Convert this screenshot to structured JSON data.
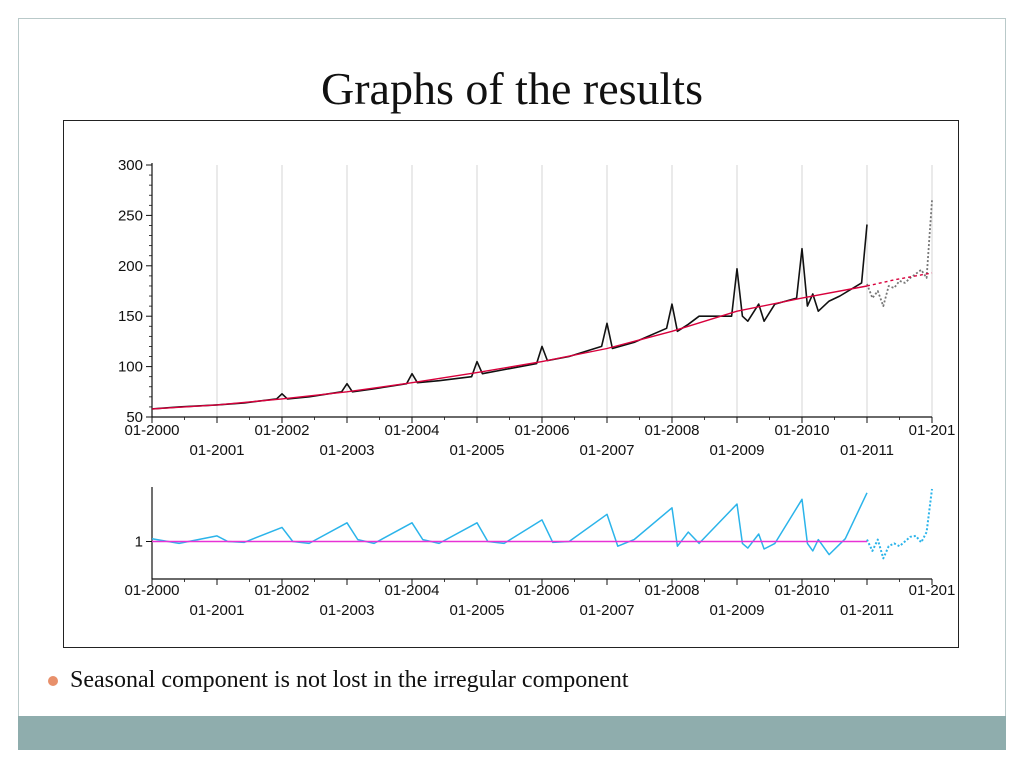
{
  "slide": {
    "title": "Graphs of the results",
    "bullet": "Seasonal component is not lost in the irregular component"
  },
  "colors": {
    "series_original": "#111111",
    "series_trend": "#d8003c",
    "series_seasonal_irregular": "#2bb4ea",
    "reference_line": "#e832d6",
    "bullet": "#e8906b",
    "footer": "#8fadad"
  },
  "chart_data": [
    {
      "type": "line",
      "title": "",
      "xlabel": "",
      "ylabel": "",
      "ylim": [
        50,
        300
      ],
      "xlim": [
        "2000-01",
        "2012-01"
      ],
      "y_ticks": [
        "300",
        "250",
        "200",
        "150",
        "100",
        "50"
      ],
      "y_tick_values": [
        300,
        250,
        200,
        150,
        100,
        50
      ],
      "x_ticks_top_row": [
        "01-2000",
        "01-2002",
        "01-2004",
        "01-2006",
        "01-2008",
        "01-2010",
        "01-201"
      ],
      "x_ticks_bottom_row": [
        "01-2001",
        "01-2003",
        "01-2005",
        "01-2007",
        "01-2009",
        "01-2011"
      ],
      "grid": true,
      "series": [
        {
          "style": "solid",
          "x": [
            "2000-01",
            "2000-06",
            "2001-01",
            "2001-06",
            "2001-12",
            "2002-01",
            "2002-02",
            "2002-06",
            "2002-12",
            "2003-01",
            "2003-02",
            "2003-06",
            "2003-12",
            "2004-01",
            "2004-02",
            "2004-06",
            "2004-12",
            "2005-01",
            "2005-02",
            "2005-06",
            "2005-12",
            "2006-01",
            "2006-02",
            "2006-06",
            "2006-12",
            "2007-01",
            "2007-02",
            "2007-06",
            "2007-12",
            "2008-01",
            "2008-02",
            "2008-04",
            "2008-06",
            "2008-12",
            "2009-01",
            "2009-02",
            "2009-03",
            "2009-05",
            "2009-06",
            "2009-08",
            "2009-12",
            "2010-01",
            "2010-02",
            "2010-03",
            "2010-04",
            "2010-06",
            "2010-08",
            "2010-12",
            "2011-01"
          ],
          "values": [
            58,
            60,
            62,
            64,
            68,
            73,
            68,
            70,
            75,
            83,
            75,
            78,
            83,
            93,
            84,
            86,
            90,
            105,
            93,
            97,
            103,
            120,
            106,
            110,
            120,
            143,
            118,
            124,
            138,
            162,
            135,
            142,
            150,
            150,
            197,
            150,
            145,
            162,
            145,
            162,
            168,
            217,
            160,
            172,
            155,
            165,
            170,
            183,
            241
          ]
        },
        {
          "style": "dotted",
          "x": [
            "2011-01",
            "2011-02",
            "2011-03",
            "2011-04",
            "2011-05",
            "2011-06",
            "2011-07",
            "2011-08",
            "2011-09",
            "2011-10",
            "2011-11",
            "2011-12",
            "2012-01"
          ],
          "values": [
            182,
            168,
            175,
            160,
            180,
            178,
            185,
            183,
            188,
            192,
            196,
            188,
            265
          ]
        },
        {
          "style": "trend-solid",
          "x": [
            "2000-01",
            "2001-01",
            "2002-01",
            "2003-01",
            "2004-01",
            "2005-01",
            "2006-01",
            "2007-01",
            "2008-01",
            "2009-01",
            "2010-01",
            "2011-01"
          ],
          "values": [
            58,
            62,
            68,
            75,
            84,
            94,
            105,
            118,
            135,
            155,
            168,
            180
          ]
        },
        {
          "style": "trend-dashed",
          "x": [
            "2011-01",
            "2011-06",
            "2012-01"
          ],
          "values": [
            180,
            186,
            193
          ]
        }
      ]
    },
    {
      "type": "line",
      "title": "",
      "xlabel": "",
      "ylabel": "",
      "ylim": [
        0.6,
        1.56
      ],
      "xlim": [
        "2000-01",
        "2012-01"
      ],
      "y_ticks": [
        "1"
      ],
      "y_tick_values": [
        1
      ],
      "x_ticks_top_row": [
        "01-2000",
        "01-2002",
        "01-2004",
        "01-2006",
        "01-2008",
        "01-2010",
        "01-201"
      ],
      "x_ticks_bottom_row": [
        "01-2001",
        "01-2003",
        "01-2005",
        "01-2007",
        "01-2009",
        "01-2011"
      ],
      "grid": false,
      "series": [
        {
          "style": "solid",
          "x": [
            "2000-01",
            "2000-06",
            "2001-01",
            "2001-03",
            "2001-06",
            "2002-01",
            "2002-03",
            "2002-06",
            "2003-01",
            "2003-03",
            "2003-06",
            "2004-01",
            "2004-03",
            "2004-06",
            "2005-01",
            "2005-03",
            "2005-06",
            "2006-01",
            "2006-03",
            "2006-06",
            "2007-01",
            "2007-03",
            "2007-06",
            "2008-01",
            "2008-02",
            "2008-04",
            "2008-06",
            "2009-01",
            "2009-02",
            "2009-03",
            "2009-05",
            "2009-06",
            "2009-08",
            "2010-01",
            "2010-02",
            "2010-03",
            "2010-04",
            "2010-06",
            "2010-09",
            "2011-01"
          ],
          "values": [
            1.03,
            0.98,
            1.06,
            1.0,
            0.99,
            1.15,
            1.0,
            0.98,
            1.2,
            1.02,
            0.98,
            1.2,
            1.02,
            0.98,
            1.2,
            1.0,
            0.98,
            1.23,
            0.99,
            1.0,
            1.29,
            0.95,
            1.02,
            1.36,
            0.95,
            1.1,
            0.98,
            1.4,
            0.98,
            0.93,
            1.08,
            0.92,
            0.98,
            1.45,
            0.98,
            0.9,
            1.02,
            0.86,
            1.03,
            1.52
          ]
        },
        {
          "style": "dotted",
          "x": [
            "2011-01",
            "2011-02",
            "2011-03",
            "2011-04",
            "2011-05",
            "2011-06",
            "2011-07",
            "2011-08",
            "2011-09",
            "2011-10",
            "2011-11",
            "2011-12",
            "2012-01"
          ],
          "values": [
            1.02,
            0.9,
            1.02,
            0.82,
            0.95,
            0.98,
            0.95,
            1.0,
            1.05,
            1.06,
            0.99,
            1.1,
            1.56
          ]
        },
        {
          "style": "reference",
          "x": [
            "2000-01",
            "2011-01"
          ],
          "values": [
            1,
            1
          ]
        }
      ]
    }
  ]
}
